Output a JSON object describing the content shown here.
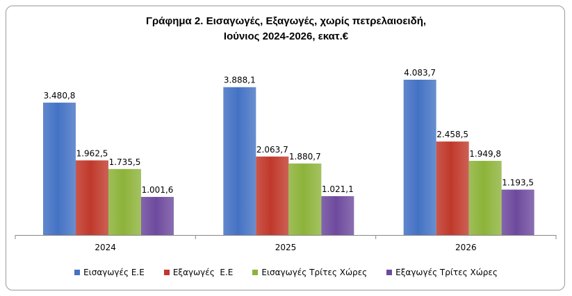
{
  "chart_data": {
    "type": "bar",
    "title_line1": "Γράφημα 2. Εισαγωγές, Εξαγωγές, χωρίς πετρελαιοειδή,",
    "title_line2": "Ιούνιος 2024-2026, εκατ.€",
    "categories": [
      "2024",
      "2025",
      "2026"
    ],
    "series": [
      {
        "name": "Εισαγωγές Ε.Ε",
        "color": "#4472C4",
        "values": [
          3480.8,
          3888.1,
          4083.7
        ],
        "labels": [
          "3.480,8",
          "3.888,1",
          "4.083,7"
        ]
      },
      {
        "name": "Εξαγωγές  Ε.Ε",
        "color": "#C0392B",
        "values": [
          1962.5,
          2063.7,
          2458.5
        ],
        "labels": [
          "1.962,5",
          "2.063,7",
          "2.458,5"
        ]
      },
      {
        "name": "Εισαγωγές Τρίτες Χώρες",
        "color": "#8DB33A",
        "values": [
          1735.5,
          1880.7,
          1949.8
        ],
        "labels": [
          "1.735,5",
          "1.880,7",
          "1.949,8"
        ]
      },
      {
        "name": "Εξαγωγές Τρίτες Χώρες",
        "color": "#6E4A9E",
        "values": [
          1001.6,
          1021.1,
          1193.5
        ],
        "labels": [
          "1.001,6",
          "1.021,1",
          "1.193,5"
        ]
      }
    ],
    "legend_position": "bottom",
    "grid": false
  }
}
